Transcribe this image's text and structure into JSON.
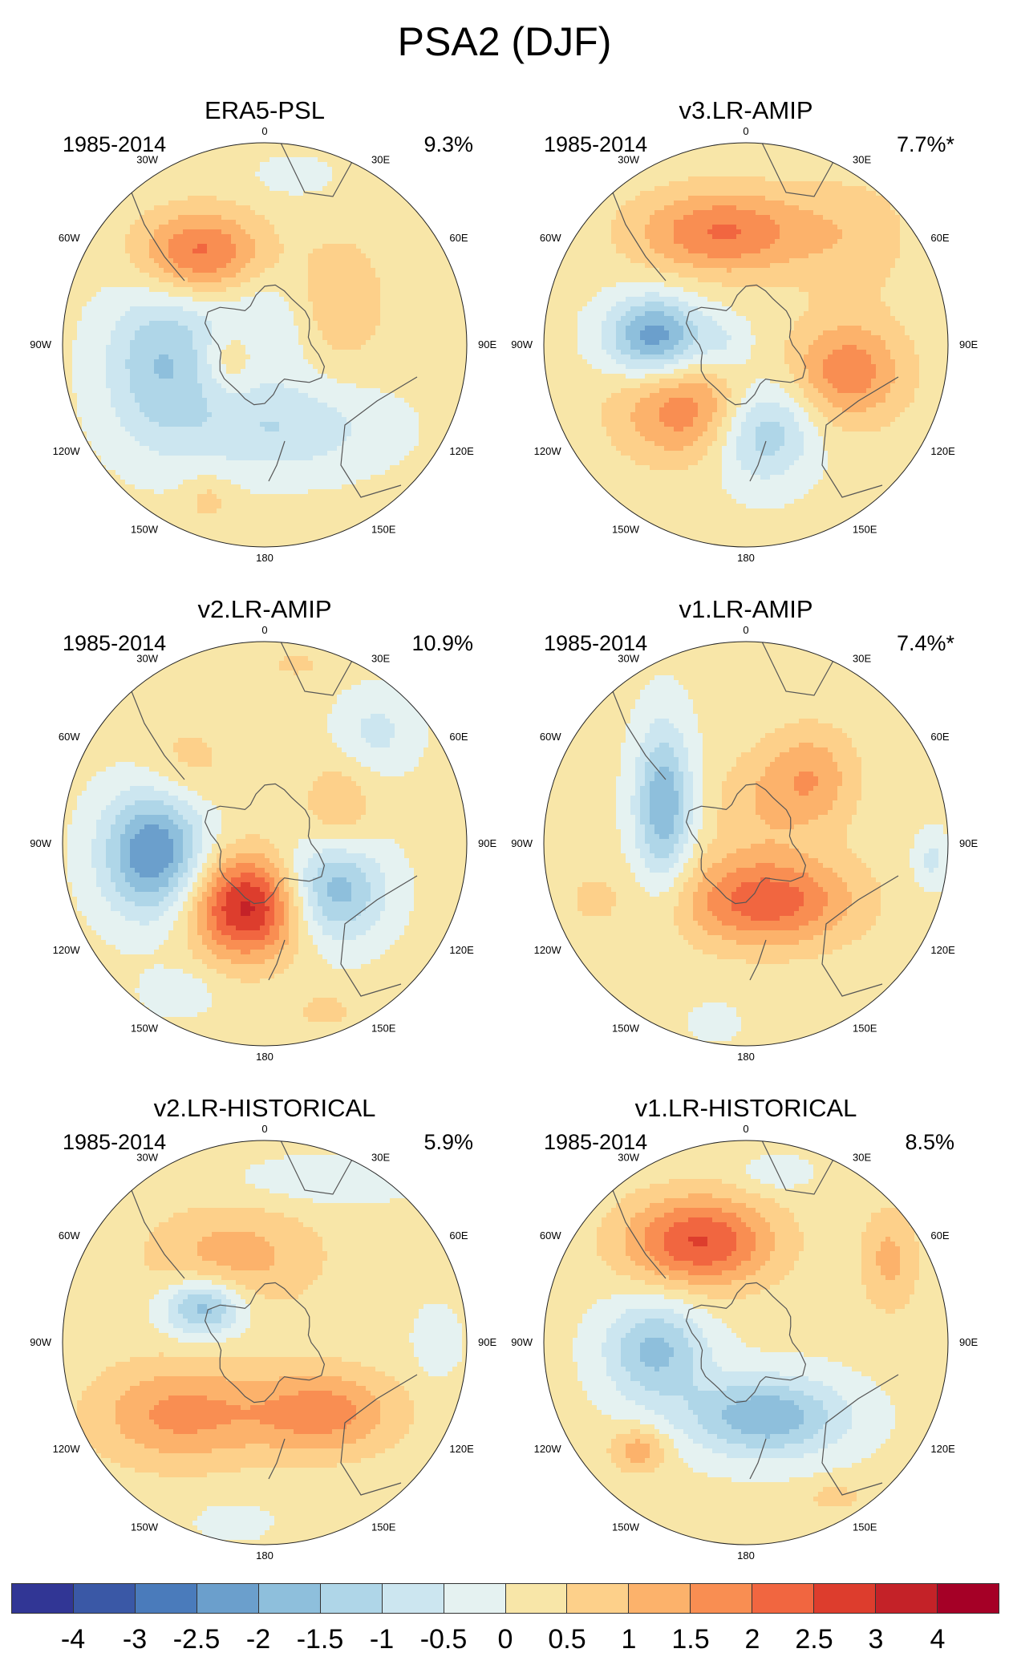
{
  "title": "PSA2 (DJF)",
  "panels": [
    {
      "name": "ERA5-PSL",
      "period": "1985-2014",
      "percent": "9.3%",
      "features": [
        {
          "lon": -35,
          "r": 0.55,
          "val": 2.1,
          "sx": 0.22,
          "sy": 0.15
        },
        {
          "lon": -100,
          "r": 0.52,
          "val": -1.6,
          "sx": 0.2,
          "sy": 0.28
        },
        {
          "lon": -20,
          "r": 0.1,
          "val": -0.7,
          "sx": 0.22,
          "sy": 0.22
        },
        {
          "lon": 60,
          "r": 0.42,
          "val": 0.9,
          "sx": 0.16,
          "sy": 0.22
        },
        {
          "lon": -110,
          "r": 0.18,
          "val": 0.9,
          "sx": 0.1,
          "sy": 0.12
        },
        {
          "lon": 170,
          "r": 0.42,
          "val": -1.1,
          "sx": 0.35,
          "sy": 0.16
        },
        {
          "lon": -160,
          "r": 0.82,
          "val": 0.6,
          "sx": 0.08,
          "sy": 0.08
        },
        {
          "lon": 10,
          "r": 0.85,
          "val": -0.6,
          "sx": 0.12,
          "sy": 0.06
        }
      ]
    },
    {
      "name": "v3.LR-AMIP",
      "period": "1985-2014",
      "percent": "7.7%*",
      "features": [
        {
          "lon": -12,
          "r": 0.57,
          "val": 1.9,
          "sx": 0.3,
          "sy": 0.15
        },
        {
          "lon": -85,
          "r": 0.45,
          "val": -2.5,
          "sx": 0.17,
          "sy": 0.14
        },
        {
          "lon": -140,
          "r": 0.42,
          "val": 1.8,
          "sx": 0.25,
          "sy": 0.18
        },
        {
          "lon": 170,
          "r": 0.42,
          "val": -1.9,
          "sx": 0.18,
          "sy": 0.18
        },
        {
          "lon": 105,
          "r": 0.52,
          "val": 1.7,
          "sx": 0.2,
          "sy": 0.18
        },
        {
          "lon": 45,
          "r": 0.75,
          "val": 0.6,
          "sx": 0.22,
          "sy": 0.22
        },
        {
          "lon": -90,
          "r": 0.1,
          "val": -0.6,
          "sx": 0.1,
          "sy": 0.1
        }
      ]
    },
    {
      "name": "v2.LR-AMIP",
      "period": "1985-2014",
      "percent": "10.9%",
      "features": [
        {
          "lon": -95,
          "r": 0.55,
          "val": -2.7,
          "sx": 0.18,
          "sy": 0.22
        },
        {
          "lon": -165,
          "r": 0.32,
          "val": 3.1,
          "sx": 0.2,
          "sy": 0.18
        },
        {
          "lon": 125,
          "r": 0.4,
          "val": -2.1,
          "sx": 0.18,
          "sy": 0.18
        },
        {
          "lon": 65,
          "r": 0.4,
          "val": 0.9,
          "sx": 0.12,
          "sy": 0.16
        },
        {
          "lon": 45,
          "r": 0.78,
          "val": -0.8,
          "sx": 0.14,
          "sy": 0.14
        },
        {
          "lon": -45,
          "r": 0.55,
          "val": 0.6,
          "sx": 0.16,
          "sy": 0.16
        },
        {
          "lon": -150,
          "r": 0.85,
          "val": -0.6,
          "sx": 0.12,
          "sy": 0.08
        },
        {
          "lon": 160,
          "r": 0.88,
          "val": 0.6,
          "sx": 0.1,
          "sy": 0.06
        },
        {
          "lon": 10,
          "r": 0.9,
          "val": 0.5,
          "sx": 0.1,
          "sy": 0.05
        }
      ]
    },
    {
      "name": "v1.LR-AMIP",
      "period": "1985-2014",
      "percent": "7.4%*",
      "features": [
        {
          "lon": -65,
          "r": 0.45,
          "val": -2.1,
          "sx": 0.1,
          "sy": 0.28
        },
        {
          "lon": 160,
          "r": 0.3,
          "val": 2.2,
          "sx": 0.3,
          "sy": 0.16
        },
        {
          "lon": 45,
          "r": 0.45,
          "val": 1.3,
          "sx": 0.16,
          "sy": 0.18
        },
        {
          "lon": 10,
          "r": 0.2,
          "val": 0.6,
          "sx": 0.16,
          "sy": 0.18
        },
        {
          "lon": 95,
          "r": 0.92,
          "val": -0.8,
          "sx": 0.06,
          "sy": 0.1
        },
        {
          "lon": -170,
          "r": 0.9,
          "val": -0.6,
          "sx": 0.08,
          "sy": 0.06
        },
        {
          "lon": -110,
          "r": 0.8,
          "val": 0.5,
          "sx": 0.1,
          "sy": 0.1
        }
      ]
    },
    {
      "name": "v2.LR-HISTORICAL",
      "period": "1985-2014",
      "percent": "5.9%",
      "features": [
        {
          "lon": -60,
          "r": 0.35,
          "val": -2.1,
          "sx": 0.14,
          "sy": 0.1
        },
        {
          "lon": -130,
          "r": 0.55,
          "val": 1.5,
          "sx": 0.3,
          "sy": 0.18
        },
        {
          "lon": 140,
          "r": 0.45,
          "val": 1.6,
          "sx": 0.26,
          "sy": 0.15
        },
        {
          "lon": -20,
          "r": 0.45,
          "val": 1.1,
          "sx": 0.3,
          "sy": 0.18
        },
        {
          "lon": 20,
          "r": 0.85,
          "val": -0.6,
          "sx": 0.3,
          "sy": 0.08
        },
        {
          "lon": 90,
          "r": 0.85,
          "val": -0.6,
          "sx": 0.08,
          "sy": 0.12
        },
        {
          "lon": -170,
          "r": 0.9,
          "val": -0.6,
          "sx": 0.12,
          "sy": 0.06
        }
      ]
    },
    {
      "name": "v1.LR-HISTORICAL",
      "period": "1985-2014",
      "percent": "8.5%",
      "features": [
        {
          "lon": -25,
          "r": 0.55,
          "val": 2.4,
          "sx": 0.26,
          "sy": 0.16
        },
        {
          "lon": -95,
          "r": 0.45,
          "val": -1.8,
          "sx": 0.18,
          "sy": 0.18
        },
        {
          "lon": 165,
          "r": 0.38,
          "val": -2.1,
          "sx": 0.28,
          "sy": 0.14
        },
        {
          "lon": 60,
          "r": 0.82,
          "val": 1.0,
          "sx": 0.1,
          "sy": 0.18
        },
        {
          "lon": -135,
          "r": 0.75,
          "val": 1.2,
          "sx": 0.1,
          "sy": 0.08
        },
        {
          "lon": 10,
          "r": 0.85,
          "val": -0.6,
          "sx": 0.12,
          "sy": 0.06
        },
        {
          "lon": 150,
          "r": 0.88,
          "val": 0.6,
          "sx": 0.1,
          "sy": 0.05
        }
      ]
    }
  ],
  "lon_labels": [
    "0",
    "30E",
    "60E",
    "90E",
    "120E",
    "150E",
    "180",
    "150W",
    "120W",
    "90W",
    "60W",
    "30W"
  ],
  "colorbar": {
    "colors": [
      "#313695",
      "#3a58a6",
      "#4a7bbb",
      "#6b9fcc",
      "#8ebfdc",
      "#afd6e8",
      "#cce6f0",
      "#e5f2f1",
      "#f8e6a8",
      "#fdd08a",
      "#fcb26b",
      "#f98e52",
      "#f16640",
      "#dd3d2d",
      "#c42228",
      "#a50026"
    ],
    "labels": [
      "-4",
      "-3",
      "-2.5",
      "-2",
      "-1.5",
      "-1",
      "-0.5",
      "0",
      "0.5",
      "1",
      "1.5",
      "2",
      "2.5",
      "3",
      "4"
    ]
  }
}
